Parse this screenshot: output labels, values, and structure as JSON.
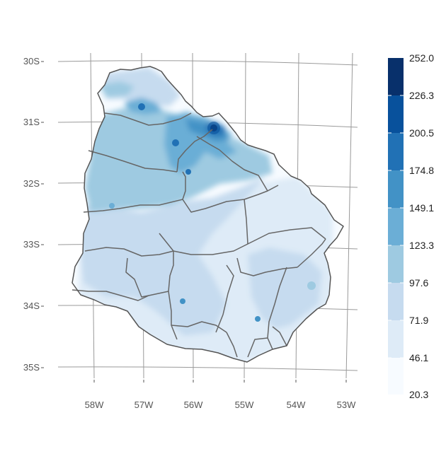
{
  "map": {
    "y_tick_labels": [
      "30S",
      "31S",
      "32S",
      "33S",
      "34S",
      "35S"
    ],
    "x_tick_labels": [
      "58W",
      "57W",
      "56W",
      "55W",
      "54W",
      "53W"
    ],
    "legend": {
      "breaks": [
        "252.0",
        "226.3",
        "200.5",
        "174.8",
        "149.1",
        "123.3",
        "97.6",
        "71.9",
        "46.1",
        "20.3"
      ],
      "colors": [
        "#08306b",
        "#08519c",
        "#2171b5",
        "#4292c6",
        "#6baed6",
        "#9ecae1",
        "#c6dbef",
        "#deebf7",
        "#f7fbff"
      ]
    },
    "colors": {
      "graticule": "#9a9a9a",
      "border": "#666666",
      "outline": "#555555"
    }
  }
}
